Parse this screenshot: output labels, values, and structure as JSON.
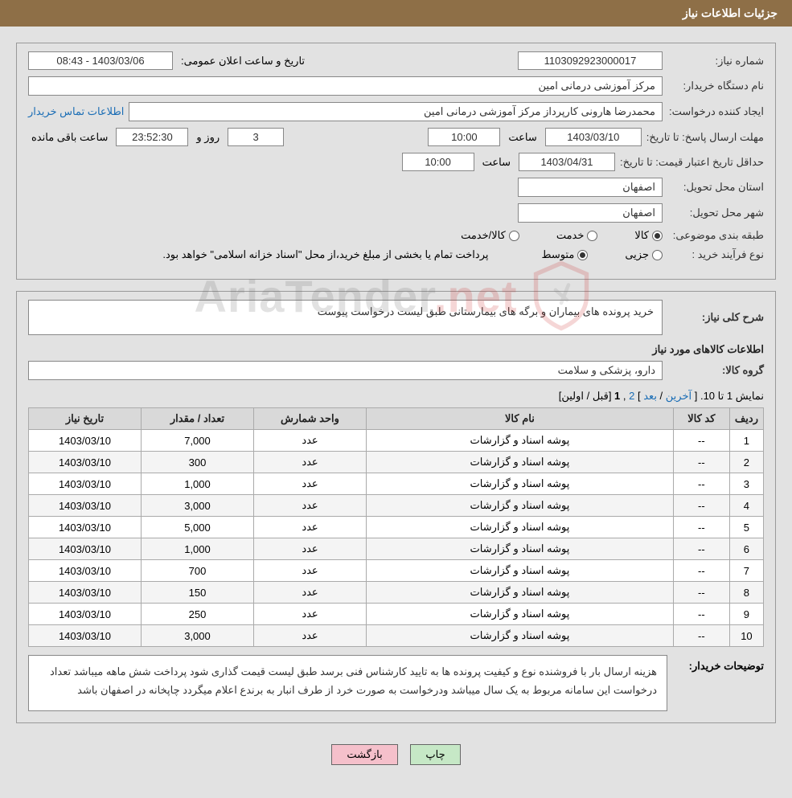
{
  "header": {
    "title": "جزئیات اطلاعات نیاز"
  },
  "info": {
    "request_no_label": "شماره نیاز:",
    "request_no": "1103092923000017",
    "announce_label": "تاریخ و ساعت اعلان عمومی:",
    "announce_value": "1403/03/06 - 08:43",
    "buyer_org_label": "نام دستگاه خریدار:",
    "buyer_org": "مرکز آموزشی درمانی امین",
    "requester_label": "ایجاد کننده درخواست:",
    "requester": "محمدرضا هارونی کارپرداز مرکز آموزشی درمانی امین",
    "contact_link": "اطلاعات تماس خریدار",
    "deadline_label": "مهلت ارسال پاسخ: تا تاریخ:",
    "deadline_date": "1403/03/10",
    "hour_word": "ساعت",
    "deadline_time": "10:00",
    "day_and_label": "روز و",
    "remain_days": "3",
    "remain_time": "23:52:30",
    "remain_suffix": "ساعت باقی مانده",
    "min_valid_label": "حداقل تاریخ اعتبار قیمت: تا تاریخ:",
    "min_valid_date": "1403/04/31",
    "min_valid_time": "10:00",
    "delivery_province_label": "استان محل تحویل:",
    "delivery_province": "اصفهان",
    "delivery_city_label": "شهر محل تحویل:",
    "delivery_city": "اصفهان",
    "subject_class_label": "طبقه بندی موضوعی:",
    "class_goods": "کالا",
    "class_service": "خدمت",
    "class_goods_service": "کالا/خدمت",
    "process_label": "نوع فرآیند خرید :",
    "process_partial": "جزیی",
    "process_medium": "متوسط",
    "process_note": "پرداخت تمام یا بخشی از مبلغ خرید،از محل \"اسناد خزانه اسلامی\" خواهد بود."
  },
  "need": {
    "summary_label": "شرح کلی نیاز:",
    "summary": "خرید پرونده های بیماران و برگه های بیمارستانی طبق لیست درخواست پیوست",
    "goods_info_title": "اطلاعات کالاهای مورد نیاز",
    "group_label": "گروه کالا:",
    "group": "دارو، پزشکی و سلامت"
  },
  "pagination": {
    "range": "نمایش 1 تا 10. [ ",
    "last": "آخرین",
    "sep1": " / ",
    "next": "بعد",
    "sep2": " ] ",
    "p2": "2",
    "comma": " ,",
    "p1": "1",
    "sep3": " [",
    "prev": "قبل",
    "sep4": " / ",
    "first": "اولین",
    "end": "]"
  },
  "table": {
    "columns": {
      "row": "ردیف",
      "code": "کد کالا",
      "name": "نام کالا",
      "unit": "واحد شمارش",
      "qty": "تعداد / مقدار",
      "date": "تاریخ نیاز"
    },
    "rows": [
      {
        "n": "1",
        "code": "--",
        "name": "پوشه اسناد و گزارشات",
        "unit": "عدد",
        "qty": "7,000",
        "date": "1403/03/10"
      },
      {
        "n": "2",
        "code": "--",
        "name": "پوشه اسناد و گزارشات",
        "unit": "عدد",
        "qty": "300",
        "date": "1403/03/10"
      },
      {
        "n": "3",
        "code": "--",
        "name": "پوشه اسناد و گزارشات",
        "unit": "عدد",
        "qty": "1,000",
        "date": "1403/03/10"
      },
      {
        "n": "4",
        "code": "--",
        "name": "پوشه اسناد و گزارشات",
        "unit": "عدد",
        "qty": "3,000",
        "date": "1403/03/10"
      },
      {
        "n": "5",
        "code": "--",
        "name": "پوشه اسناد و گزارشات",
        "unit": "عدد",
        "qty": "5,000",
        "date": "1403/03/10"
      },
      {
        "n": "6",
        "code": "--",
        "name": "پوشه اسناد و گزارشات",
        "unit": "عدد",
        "qty": "1,000",
        "date": "1403/03/10"
      },
      {
        "n": "7",
        "code": "--",
        "name": "پوشه اسناد و گزارشات",
        "unit": "عدد",
        "qty": "700",
        "date": "1403/03/10"
      },
      {
        "n": "8",
        "code": "--",
        "name": "پوشه اسناد و گزارشات",
        "unit": "عدد",
        "qty": "150",
        "date": "1403/03/10"
      },
      {
        "n": "9",
        "code": "--",
        "name": "پوشه اسناد و گزارشات",
        "unit": "عدد",
        "qty": "250",
        "date": "1403/03/10"
      },
      {
        "n": "10",
        "code": "--",
        "name": "پوشه اسناد و گزارشات",
        "unit": "عدد",
        "qty": "3,000",
        "date": "1403/03/10"
      }
    ]
  },
  "buyer_note": {
    "label": "توضیحات خریدار:",
    "text": "هزینه ارسال بار با فروشنده نوع و کیفیت پرونده ها به تایید کارشناس فنی برسد طبق لیست قیمت گذاری شود پرداخت شش ماهه میباشد تعداد درخواست این سامانه مربوط به یک سال میباشد ودرخواست به صورت خرد از طرف انبار به برندع اعلام میگردد چاپخانه در اصفهان باشد"
  },
  "buttons": {
    "print": "چاپ",
    "back": "بازگشت"
  },
  "watermark": {
    "brand": "AriaTender",
    "suffix": ".net"
  },
  "colors": {
    "header_bg": "#8e6f47",
    "page_bg": "#e2e2e2",
    "border": "#888888",
    "link": "#1a6db5",
    "btn_print_bg": "#c6e8c6",
    "btn_back_bg": "#f5c0cb",
    "th_bg": "#d9d9d9"
  }
}
